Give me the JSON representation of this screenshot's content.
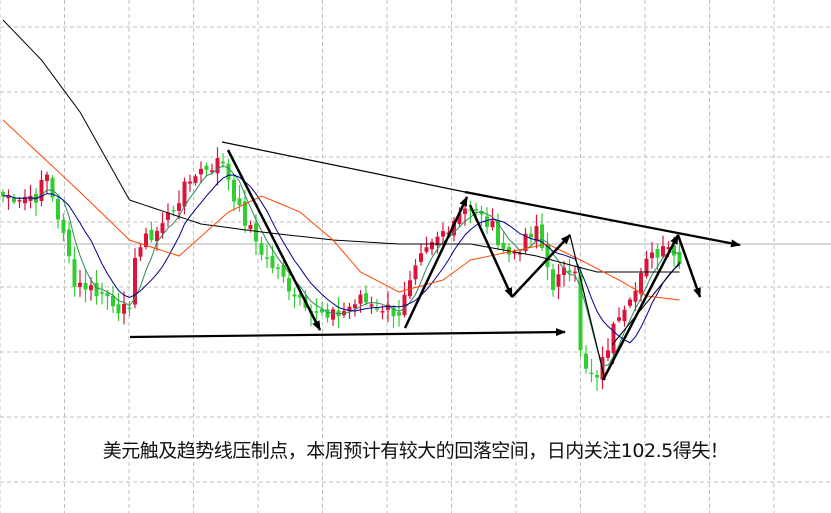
{
  "caption": "美元触及趋势线压制点，本周预计有较大的回落空间，日内关注102.5得失！",
  "colors": {
    "up": "#dc143c",
    "down": "#32cd32",
    "ma_fast": "#2e8b57",
    "ma_mid": "#00008b",
    "ma_orange": "#ff4500",
    "ma_long": "#000000",
    "grid": "#c0c0c0",
    "annotation": "#000000"
  },
  "chart_data": {
    "type": "candlestick",
    "title": "",
    "xlabel": "",
    "ylabel": "",
    "grid": true,
    "note": "no axis tick labels shown; levels on relative 0-100 scale",
    "close_path": [
      [
        0,
        51
      ],
      [
        6,
        51
      ],
      [
        8,
        56
      ],
      [
        10,
        46
      ],
      [
        13,
        30
      ],
      [
        19,
        26
      ],
      [
        23,
        21
      ],
      [
        24,
        37
      ],
      [
        29,
        44
      ],
      [
        35,
        57
      ],
      [
        40,
        60
      ],
      [
        43,
        47
      ],
      [
        48,
        35
      ],
      [
        53,
        27
      ],
      [
        59,
        20
      ],
      [
        65,
        25
      ],
      [
        72,
        22
      ],
      [
        76,
        35
      ],
      [
        80,
        42
      ],
      [
        84,
        49
      ],
      [
        89,
        43
      ],
      [
        92,
        36
      ],
      [
        97,
        42
      ],
      [
        100,
        29
      ],
      [
        104,
        34
      ],
      [
        101,
        41
      ],
      [
        106,
        7
      ],
      [
        108,
        5
      ],
      [
        112,
        22
      ],
      [
        117,
        34
      ],
      [
        121,
        40
      ],
      [
        123,
        34
      ]
    ],
    "moving_averages": [
      {
        "color": "ma_long",
        "path": [
          [
            0,
            95
          ],
          [
            7,
            85
          ],
          [
            14,
            72
          ],
          [
            23,
            50
          ],
          [
            36,
            44
          ],
          [
            47,
            42
          ],
          [
            60,
            40
          ],
          [
            72,
            39
          ],
          [
            85,
            39
          ],
          [
            97,
            36
          ],
          [
            108,
            32
          ],
          [
            123,
            32
          ]
        ]
      },
      {
        "color": "ma_orange",
        "path": [
          [
            0,
            70
          ],
          [
            7,
            61
          ],
          [
            14,
            52
          ],
          [
            23,
            40
          ],
          [
            32,
            36
          ],
          [
            41,
            47
          ],
          [
            47,
            51
          ],
          [
            54,
            47
          ],
          [
            60,
            40
          ],
          [
            65,
            32
          ],
          [
            72,
            27
          ],
          [
            80,
            30
          ],
          [
            85,
            35
          ],
          [
            92,
            37
          ],
          [
            99,
            39
          ],
          [
            105,
            35
          ],
          [
            112,
            30
          ],
          [
            117,
            26
          ],
          [
            123,
            25
          ]
        ]
      }
    ]
  }
}
